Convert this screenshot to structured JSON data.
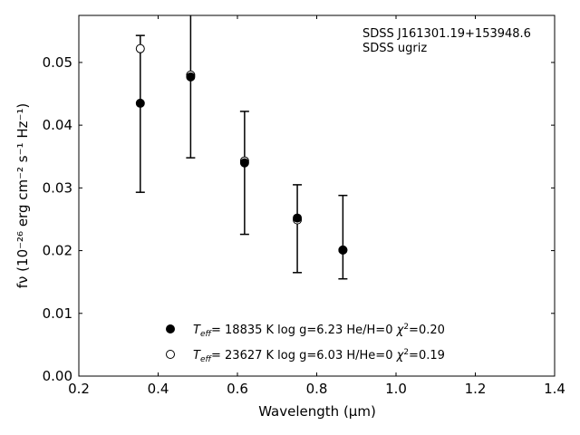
{
  "chart_data": {
    "type": "scatter",
    "annotations": [
      "SDSS J161301.19+153948.6",
      "SDSS ugriz"
    ],
    "xlabel": "Wavelength (μm)",
    "ylabel": "fν (10⁻²⁶ erg cm⁻² s⁻¹ Hz⁻¹)",
    "xlim": [
      0.2,
      1.4
    ],
    "ylim": [
      0.0,
      0.0575
    ],
    "x_ticks": [
      "0.2",
      "0.4",
      "0.6",
      "0.8",
      "1.0",
      "1.2",
      "1.4"
    ],
    "y_ticks": [
      "0.00",
      "0.01",
      "0.02",
      "0.03",
      "0.04",
      "0.05"
    ],
    "legend_position": "bottom-center",
    "grid": false,
    "observed": {
      "x": [
        0.355,
        0.482,
        0.618,
        0.751,
        0.866
      ],
      "y": [
        0.0435,
        0.0477,
        0.034,
        0.0252,
        0.0201
      ],
      "yerr_low": [
        0.0293,
        0.0348,
        0.0226,
        0.0165,
        0.0155
      ],
      "yerr_high": [
        0.0543,
        0.06,
        0.0422,
        0.0305,
        0.0288
      ]
    },
    "series": [
      {
        "teff": "18835",
        "logg": "6.23",
        "composition": "He/H=0",
        "chi2": "0.20",
        "marker": "filled",
        "x": [
          0.355,
          0.482,
          0.618,
          0.751,
          0.866
        ],
        "y": [
          0.0435,
          0.0477,
          0.034,
          0.0252,
          0.0201
        ]
      },
      {
        "teff": "23627",
        "logg": "6.03",
        "composition": "H/He=0",
        "chi2": "0.19",
        "marker": "open",
        "x": [
          0.355,
          0.482,
          0.618,
          0.751,
          0.866
        ],
        "y": [
          0.0522,
          0.048,
          0.0343,
          0.0249,
          0.0201
        ]
      }
    ]
  }
}
